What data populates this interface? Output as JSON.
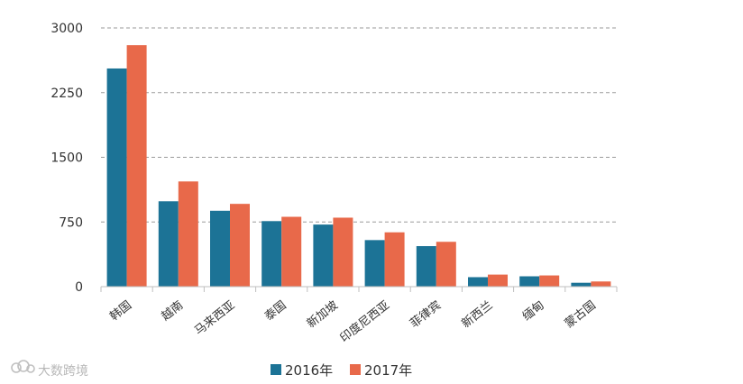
{
  "chart_data": {
    "type": "bar",
    "title": "",
    "xlabel": "",
    "ylabel": "",
    "categories": [
      "韩国",
      "越南",
      "马来西亚",
      "泰国",
      "新加坡",
      "印度尼西亚",
      "菲律宾",
      "新西兰",
      "缅甸",
      "蒙古国"
    ],
    "series": [
      {
        "name": "2016年",
        "color": "#1c7396",
        "values": [
          2530,
          990,
          880,
          760,
          720,
          540,
          470,
          110,
          120,
          45
        ]
      },
      {
        "name": "2017年",
        "color": "#e8694a",
        "values": [
          2800,
          1220,
          960,
          810,
          800,
          630,
          520,
          140,
          130,
          60
        ]
      }
    ],
    "ylim": [
      0,
      3000
    ],
    "yticks": [
      "0",
      "750",
      "1500",
      "2250",
      "3000"
    ],
    "grid": true,
    "legend_position": "bottom"
  },
  "watermark": {
    "text": "大数跨境",
    "icon": "cloud-logo-icon"
  }
}
